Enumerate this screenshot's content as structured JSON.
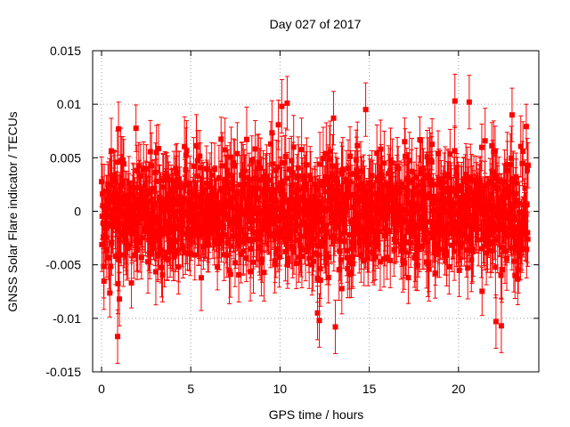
{
  "chart_data": {
    "type": "scatter",
    "title": "Day 027 of 2017",
    "xlabel": "GPS time / hours",
    "ylabel": "GNSS Solar Flare indicator / TECUs",
    "xlim": [
      -0.5,
      24.5
    ],
    "ylim": [
      -0.015,
      0.015
    ],
    "xticks": [
      0,
      5,
      10,
      15,
      20
    ],
    "yticks": [
      -0.015,
      -0.01,
      -0.005,
      0,
      0.005,
      0.01,
      0.015
    ],
    "ytick_labels": [
      "-0.015",
      "-0.01",
      "-0.005",
      "0",
      "0.005",
      "0.01",
      "0.015"
    ],
    "xtick_labels": [
      "0",
      "5",
      "10",
      "15",
      "20"
    ],
    "grid": true,
    "legend": "none",
    "marker": "filled-square",
    "error_bars": true,
    "color": "#ff0000",
    "series": [
      {
        "x_range": [
          0.0,
          23.9
        ],
        "typical_error": 0.0025,
        "y_envelope": [
          -0.0085,
          0.0085
        ],
        "notable_points": [
          {
            "x": 0.9,
            "y": -0.0117
          },
          {
            "x": 0.95,
            "y": 0.0077
          },
          {
            "x": 1.0,
            "y": -0.0082
          },
          {
            "x": 10.1,
            "y": 0.0098
          },
          {
            "x": 10.4,
            "y": 0.0101
          },
          {
            "x": 12.1,
            "y": -0.0095
          },
          {
            "x": 12.2,
            "y": -0.0102
          },
          {
            "x": 13.0,
            "y": 0.0087
          },
          {
            "x": 13.1,
            "y": -0.0108
          },
          {
            "x": 14.8,
            "y": 0.0095
          },
          {
            "x": 19.8,
            "y": 0.0103
          },
          {
            "x": 20.6,
            "y": 0.0102
          },
          {
            "x": 22.1,
            "y": -0.0103
          },
          {
            "x": 22.4,
            "y": -0.0107
          },
          {
            "x": 23.0,
            "y": 0.009
          }
        ]
      }
    ]
  }
}
